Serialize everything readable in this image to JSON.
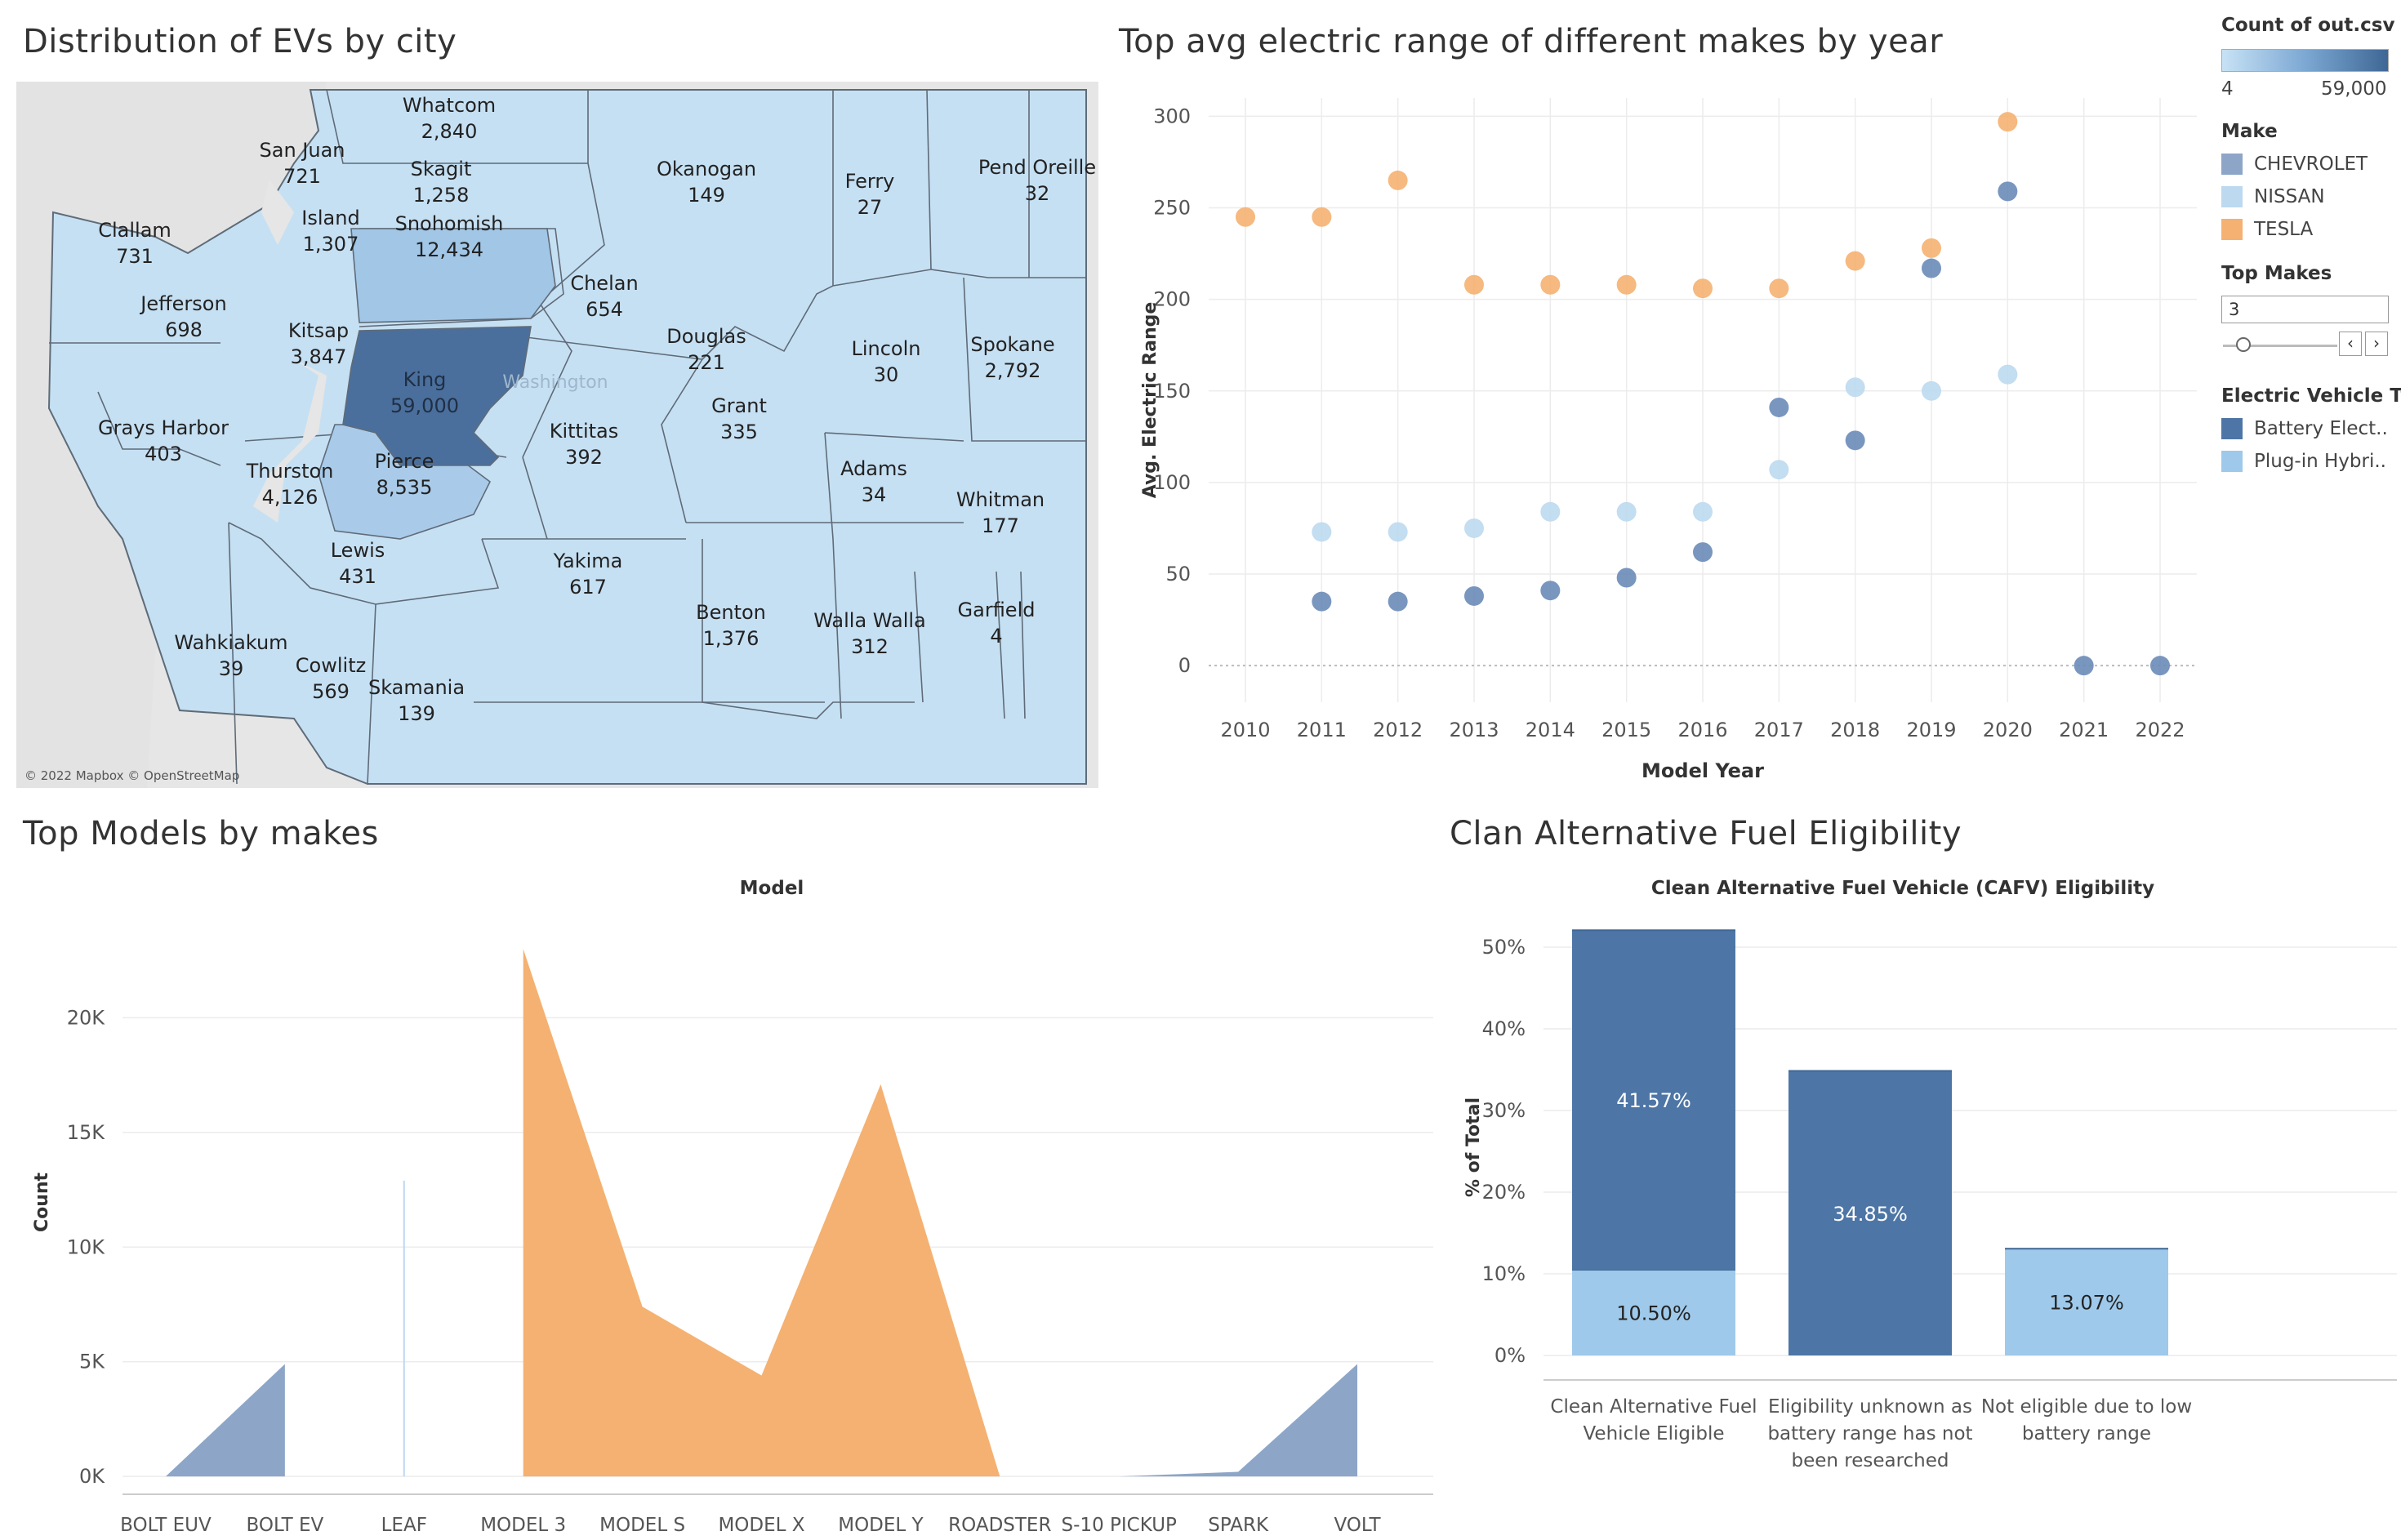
{
  "titles": {
    "map": "Distribution of EVs by city",
    "scatter": "Top avg electric range of different makes by year",
    "area": "Top Models by makes",
    "bar": "Clan Alternative Fuel Eligibility"
  },
  "colors": {
    "chevrolet": "#8da6c8",
    "nissan": "#bcd9f0",
    "tesla": "#f5b171",
    "bev": "#4d76a6",
    "phev": "#9ec9ea",
    "county_default": "#c6e0f3",
    "king": "#4b6f9c",
    "snohomish": "#a1c6e6",
    "pierce": "#a9cbe9"
  },
  "legend": {
    "count_title": "Count of out.csv",
    "count_min": "4",
    "count_max": "59,000",
    "make_title": "Make",
    "makes": [
      {
        "name": "CHEVROLET",
        "color": "#8da6c8"
      },
      {
        "name": "NISSAN",
        "color": "#bcd9f0"
      },
      {
        "name": "TESLA",
        "color": "#f5b171"
      }
    ],
    "top_makes_title": "Top Makes",
    "top_makes_value": "3",
    "ev_type_title": "Electric Vehicle Ty..",
    "ev_types": [
      {
        "name": "Battery Elect..",
        "color": "#4d76a6"
      },
      {
        "name": "Plug-in Hybri..",
        "color": "#9ec9ea"
      }
    ]
  },
  "map": {
    "attribution": "© 2022 Mapbox © OpenStreetMap",
    "state_label": "Washington",
    "counties": [
      {
        "name": "Whatcom",
        "count": "2,840"
      },
      {
        "name": "San Juan",
        "count": "721"
      },
      {
        "name": "Skagit",
        "count": "1,258"
      },
      {
        "name": "Okanogan",
        "count": "149"
      },
      {
        "name": "Ferry",
        "count": "27"
      },
      {
        "name": "Pend Oreille",
        "count": "32"
      },
      {
        "name": "Clallam",
        "count": "731"
      },
      {
        "name": "Island",
        "count": "1,307"
      },
      {
        "name": "Snohomish",
        "count": "12,434"
      },
      {
        "name": "Chelan",
        "count": "654"
      },
      {
        "name": "Jefferson",
        "count": "698"
      },
      {
        "name": "Kitsap",
        "count": "3,847"
      },
      {
        "name": "Douglas",
        "count": "221"
      },
      {
        "name": "Lincoln",
        "count": "30"
      },
      {
        "name": "Spokane",
        "count": "2,792"
      },
      {
        "name": "King",
        "count": "59,000"
      },
      {
        "name": "Grant",
        "count": "335"
      },
      {
        "name": "Grays Harbor",
        "count": "403"
      },
      {
        "name": "Kittitas",
        "count": "392"
      },
      {
        "name": "Pierce",
        "count": "8,535"
      },
      {
        "name": "Thurston",
        "count": "4,126"
      },
      {
        "name": "Adams",
        "count": "34"
      },
      {
        "name": "Whitman",
        "count": "177"
      },
      {
        "name": "Lewis",
        "count": "431"
      },
      {
        "name": "Yakima",
        "count": "617"
      },
      {
        "name": "Benton",
        "count": "1,376"
      },
      {
        "name": "Walla Walla",
        "count": "312"
      },
      {
        "name": "Garfield",
        "count": "4"
      },
      {
        "name": "Wahkiakum",
        "count": "39"
      },
      {
        "name": "Cowlitz",
        "count": "569"
      },
      {
        "name": "Skamania",
        "count": "139"
      }
    ]
  },
  "chart_data": [
    {
      "type": "scatter",
      "title": "Top avg electric range of different makes by year",
      "xlabel": "Model Year",
      "ylabel": "Avg. Electric Range",
      "x_ticks": [
        "2010",
        "2011",
        "2012",
        "2013",
        "2014",
        "2015",
        "2016",
        "2017",
        "2018",
        "2019",
        "2020",
        "2021",
        "2022"
      ],
      "y_ticks": [
        "0",
        "50",
        "100",
        "150",
        "200",
        "250",
        "300"
      ],
      "ylim": [
        -20,
        310
      ],
      "series": [
        {
          "name": "TESLA",
          "points": [
            [
              2010,
              245
            ],
            [
              2011,
              245
            ],
            [
              2012,
              265
            ],
            [
              2013,
              208
            ],
            [
              2014,
              208
            ],
            [
              2015,
              208
            ],
            [
              2016,
              206
            ],
            [
              2017,
              206
            ],
            [
              2018,
              221
            ],
            [
              2019,
              228
            ],
            [
              2020,
              297
            ]
          ]
        },
        {
          "name": "CHEVROLET",
          "points": [
            [
              2011,
              35
            ],
            [
              2012,
              35
            ],
            [
              2013,
              38
            ],
            [
              2014,
              41
            ],
            [
              2015,
              48
            ],
            [
              2016,
              62
            ],
            [
              2017,
              141
            ],
            [
              2018,
              123
            ],
            [
              2019,
              217
            ],
            [
              2020,
              259
            ],
            [
              2021,
              0
            ],
            [
              2022,
              0
            ]
          ]
        },
        {
          "name": "NISSAN",
          "points": [
            [
              2011,
              73
            ],
            [
              2012,
              73
            ],
            [
              2013,
              75
            ],
            [
              2014,
              84
            ],
            [
              2015,
              84
            ],
            [
              2016,
              84
            ],
            [
              2017,
              107
            ],
            [
              2018,
              152
            ],
            [
              2019,
              150
            ],
            [
              2020,
              159
            ]
          ]
        }
      ]
    },
    {
      "type": "area",
      "title": "Model",
      "ylabel": "Count",
      "y_ticks": [
        "0K",
        "5K",
        "10K",
        "15K",
        "20K"
      ],
      "ylim": [
        -600,
        24500
      ],
      "categories": [
        "BOLT EUV",
        "BOLT EV",
        "LEAF",
        "MODEL 3",
        "MODEL S",
        "MODEL X",
        "MODEL Y",
        "ROADSTER",
        "S-10 PICKUP",
        "SPARK",
        "VOLT"
      ],
      "series": [
        {
          "name": "CHEVROLET",
          "values": [
            0,
            4900,
            null,
            null,
            null,
            null,
            null,
            null,
            0,
            200,
            4900
          ]
        },
        {
          "name": "NISSAN",
          "values": [
            null,
            null,
            12900,
            null,
            null,
            null,
            null,
            null,
            null,
            null,
            null
          ]
        },
        {
          "name": "TESLA",
          "values": [
            null,
            null,
            null,
            23000,
            7400,
            4400,
            17100,
            0,
            null,
            null,
            null
          ]
        }
      ]
    },
    {
      "type": "bar",
      "title": "Clean Alternative Fuel Vehicle (CAFV) Eligibility",
      "ylabel": "% of Total",
      "y_ticks": [
        "0%",
        "10%",
        "20%",
        "30%",
        "40%",
        "50%"
      ],
      "ylim": [
        -2,
        53
      ],
      "categories": [
        [
          "Clean Alternative Fuel",
          "Vehicle Eligible"
        ],
        [
          "Eligibility unknown as",
          "battery range has not",
          "been researched"
        ],
        [
          "Not eligible due to low",
          "battery range"
        ]
      ],
      "series": [
        {
          "name": "Plug-in Hybri..",
          "values": [
            10.5,
            0,
            13.07
          ],
          "labels": [
            "10.50%",
            "",
            "13.07%"
          ]
        },
        {
          "name": "Battery Elect..",
          "values": [
            41.57,
            34.85,
            0
          ],
          "labels": [
            "41.57%",
            "34.85%",
            ""
          ]
        }
      ]
    }
  ]
}
